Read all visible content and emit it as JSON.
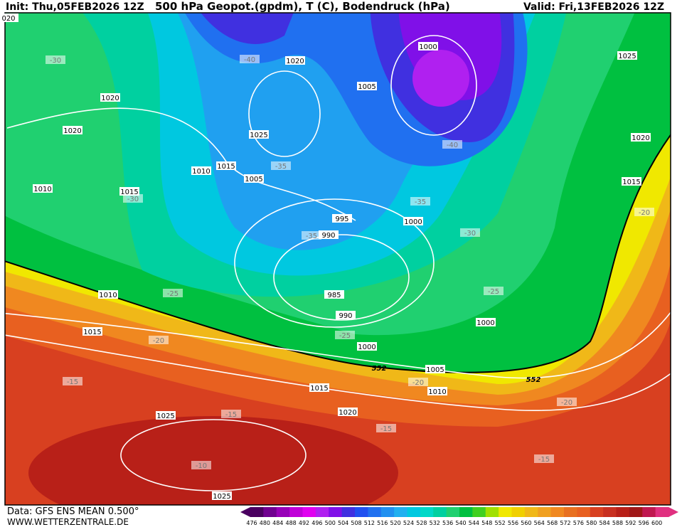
{
  "header": {
    "init": "Init: Thu,05FEB2026 12Z",
    "title": "500 hPa Geopot.(gpdm), T (C), Bodendruck (hPa)",
    "valid": "Valid: Fri,13FEB2026 12Z"
  },
  "footer": {
    "source": "Data: GFS ENS MEAN 0.500°",
    "website": "WWW.WETTERZENTRALE.DE"
  },
  "isobar_labels": [
    "020",
    "1020",
    "1000",
    "1025",
    "1005",
    "1020",
    "1020",
    "1025",
    "1020",
    "1010",
    "1015",
    "1005",
    "1015",
    "1010",
    "1015",
    "995",
    "1000",
    "990",
    "985",
    "1010",
    "990",
    "1000",
    "1015",
    "1000",
    "1005",
    "1015",
    "1010",
    "1020",
    "1025",
    "1025"
  ],
  "temperature_labels": [
    "-30",
    "-40",
    "-40",
    "-35",
    "-30",
    "-35",
    "-30",
    "-35",
    "-25",
    "-25",
    "-25",
    "-20",
    "-20",
    "-15",
    "-20",
    "-20",
    "-15",
    "-15",
    "-15",
    "-10"
  ],
  "geopotential_labels": [
    "552",
    "552"
  ],
  "legend": {
    "labels": [
      476,
      480,
      484,
      488,
      492,
      496,
      500,
      504,
      508,
      512,
      516,
      520,
      524,
      528,
      532,
      536,
      540,
      544,
      548,
      552,
      556,
      560,
      564,
      568,
      572,
      576,
      580,
      584,
      588,
      592,
      596,
      600
    ],
    "colors": [
      "#4a0060",
      "#700090",
      "#9800b8",
      "#c000d8",
      "#e000f0",
      "#b020f0",
      "#8010e8",
      "#4030e0",
      "#2050f0",
      "#2070f0",
      "#2090f0",
      "#20b0f0",
      "#00c8e0",
      "#00d8c8",
      "#00d0a0",
      "#20d070",
      "#00c040",
      "#40d020",
      "#a0e000",
      "#f0e800",
      "#f0d000",
      "#f0b818",
      "#f0a020",
      "#f08820",
      "#e87020",
      "#e86020",
      "#d84020",
      "#c83020",
      "#b82018",
      "#a01818",
      "#c01850",
      "#e03080"
    ]
  }
}
